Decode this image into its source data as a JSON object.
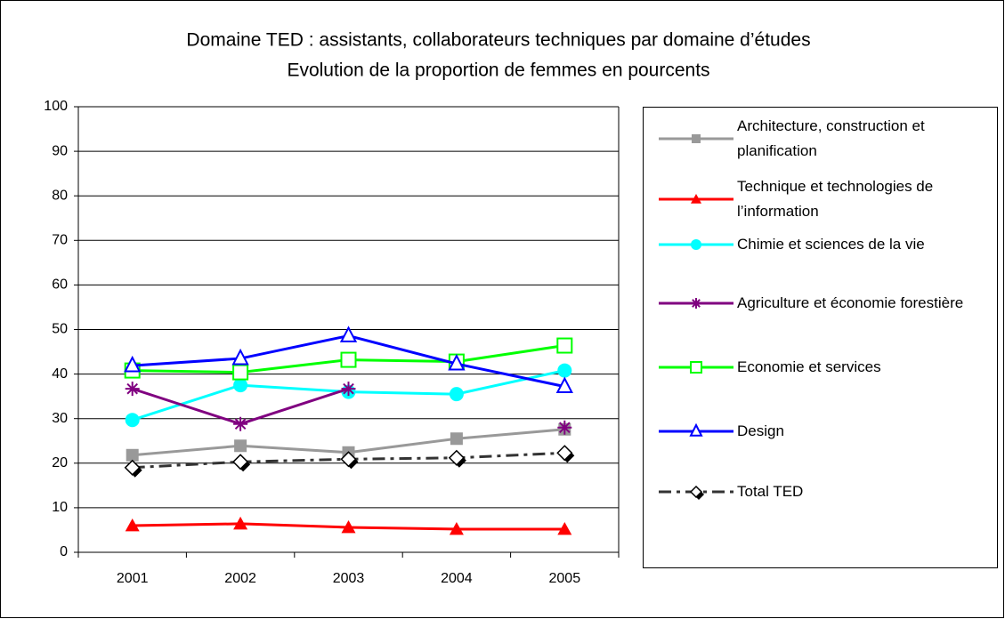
{
  "chart_data": {
    "type": "line",
    "title": "Domaine TED : assistants, collaborateurs techniques par domaine d’études",
    "subtitle": "Evolution de la proportion de femmes en pourcents",
    "categories": [
      "2001",
      "2002",
      "2003",
      "2004",
      "2005"
    ],
    "ylim": [
      0,
      100
    ],
    "yticks": [
      0,
      10,
      20,
      30,
      40,
      50,
      60,
      70,
      80,
      90,
      100
    ],
    "grid": true,
    "series": [
      {
        "name": "Architecture, construction et planification",
        "color": "#999999",
        "marker": "square",
        "values": [
          21.8,
          23.9,
          22.4,
          25.5,
          27.6
        ]
      },
      {
        "name": "Technique et technologies de l’information",
        "color": "#ff0000",
        "marker": "triangle",
        "values": [
          6,
          6.4,
          5.6,
          5.2,
          5.2
        ]
      },
      {
        "name": "Chimie et sciences de la vie",
        "color": "#00ffff",
        "marker": "circle",
        "values": [
          29.7,
          37.5,
          36,
          35.5,
          40.8
        ]
      },
      {
        "name": "Agriculture et économie forestière",
        "color": "#800080",
        "marker": "star",
        "values": [
          36.7,
          28.8,
          36.7,
          null,
          28
        ]
      },
      {
        "name": "Economie et services",
        "color": "#00ff00",
        "marker": "open-square",
        "values": [
          40.8,
          40.4,
          43.2,
          42.8,
          46.4
        ]
      },
      {
        "name": "Design",
        "color": "#0000ff",
        "marker": "open-triangle",
        "values": [
          41.9,
          43.5,
          48.6,
          42.3,
          37.2
        ]
      },
      {
        "name": "Total TED",
        "color": "#333333",
        "marker": "open-diamond",
        "dashed": true,
        "values": [
          19,
          20.3,
          20.9,
          21.2,
          22.3
        ]
      }
    ]
  }
}
